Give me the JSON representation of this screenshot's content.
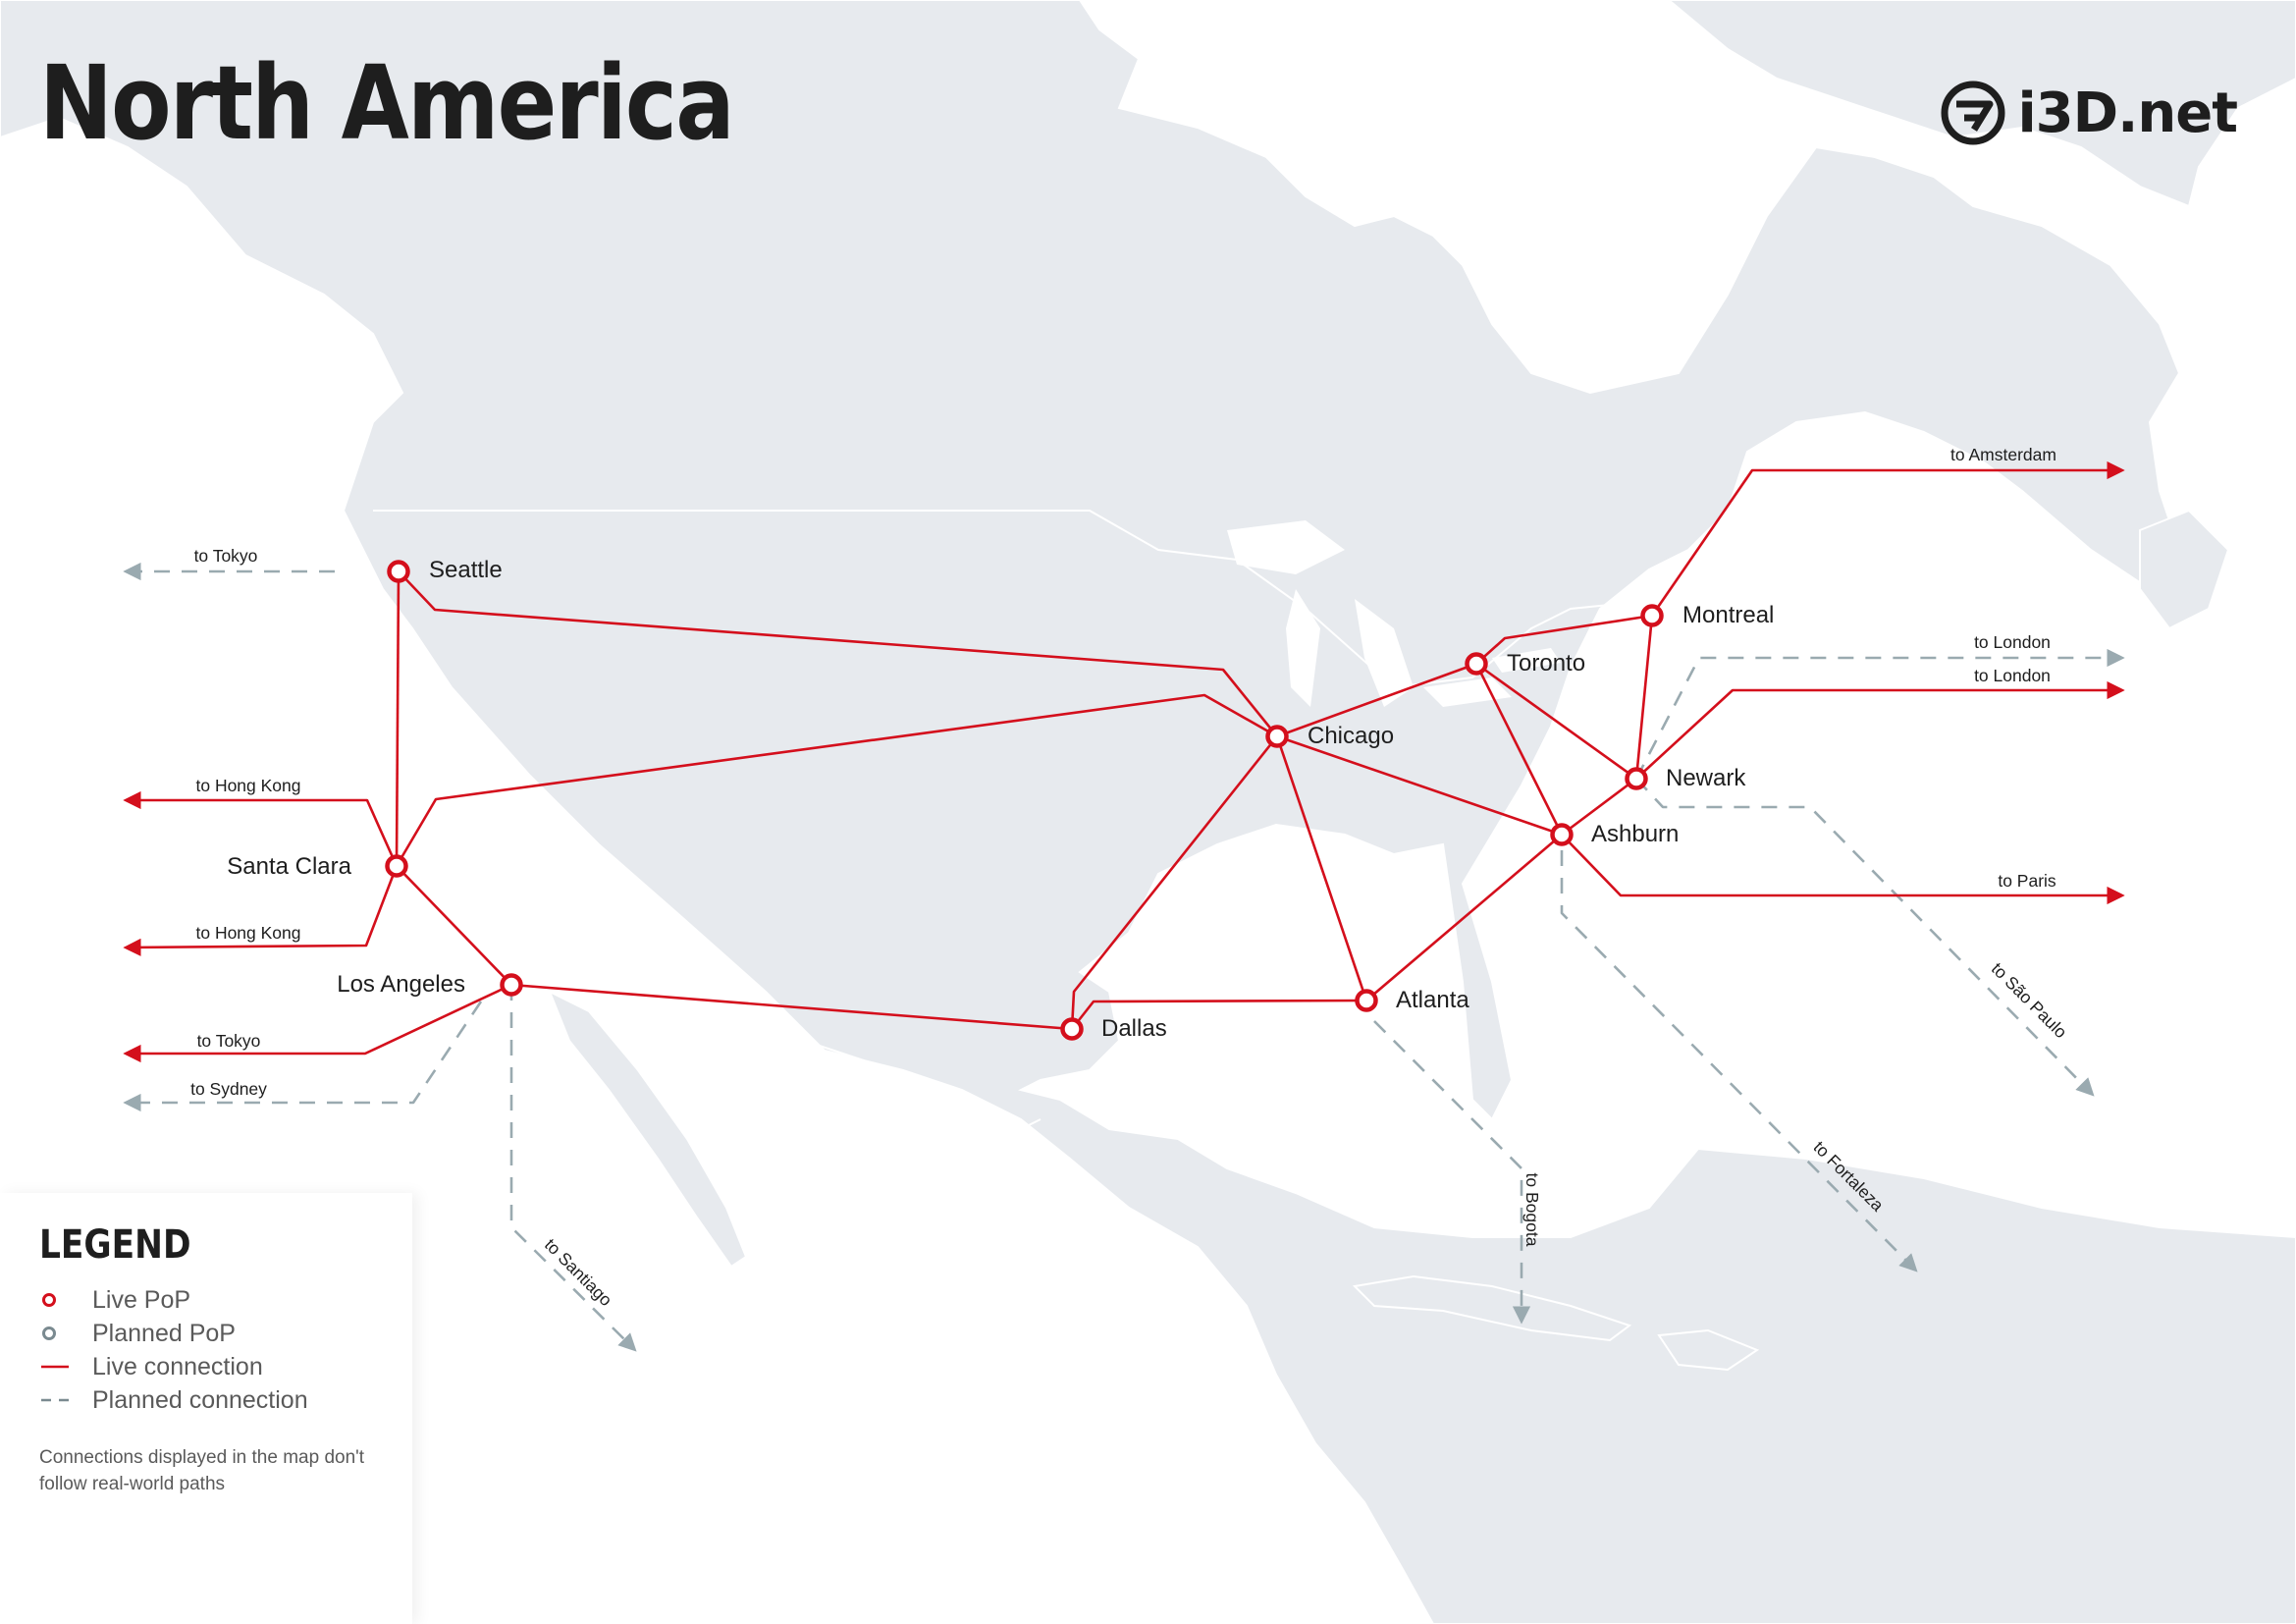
{
  "title": "North America",
  "brand": {
    "name": "i3D.net"
  },
  "colors": {
    "land": "#e7eaee",
    "sea": "#ffffff",
    "border": "#ffffff",
    "live": "#d40f1c",
    "planned": "#9aaab0",
    "text": "#1e1e1e",
    "legend_text": "#5a5a5a"
  },
  "icons": {
    "live_pop": "red-ring",
    "planned_pop": "grey-ring",
    "arrow": "arrowhead"
  },
  "pops": [
    {
      "id": "seattle",
      "name": "Seattle",
      "status": "live"
    },
    {
      "id": "santa_clara",
      "name": "Santa Clara",
      "status": "live"
    },
    {
      "id": "los_angeles",
      "name": "Los Angeles",
      "status": "live"
    },
    {
      "id": "dallas",
      "name": "Dallas",
      "status": "live"
    },
    {
      "id": "chicago",
      "name": "Chicago",
      "status": "live"
    },
    {
      "id": "atlanta",
      "name": "Atlanta",
      "status": "live"
    },
    {
      "id": "ashburn",
      "name": "Ashburn",
      "status": "live"
    },
    {
      "id": "newark",
      "name": "Newark",
      "status": "live"
    },
    {
      "id": "toronto",
      "name": "Toronto",
      "status": "live"
    },
    {
      "id": "montreal",
      "name": "Montreal",
      "status": "live"
    }
  ],
  "connections": [
    {
      "from": "seattle",
      "to": "santa_clara",
      "status": "live"
    },
    {
      "from": "seattle",
      "to": "chicago",
      "status": "live"
    },
    {
      "from": "santa_clara",
      "to": "chicago",
      "status": "live"
    },
    {
      "from": "santa_clara",
      "to": "los_angeles",
      "status": "live"
    },
    {
      "from": "los_angeles",
      "to": "dallas",
      "status": "live"
    },
    {
      "from": "dallas",
      "to": "chicago",
      "status": "live"
    },
    {
      "from": "dallas",
      "to": "atlanta",
      "status": "live"
    },
    {
      "from": "chicago",
      "to": "atlanta",
      "status": "live"
    },
    {
      "from": "chicago",
      "to": "toronto",
      "status": "live"
    },
    {
      "from": "chicago",
      "to": "ashburn",
      "status": "live"
    },
    {
      "from": "atlanta",
      "to": "ashburn",
      "status": "live"
    },
    {
      "from": "toronto",
      "to": "montreal",
      "status": "live"
    },
    {
      "from": "toronto",
      "to": "ashburn",
      "status": "live"
    },
    {
      "from": "toronto",
      "to": "newark",
      "status": "live"
    },
    {
      "from": "montreal",
      "to": "newark",
      "status": "live"
    },
    {
      "from": "newark",
      "to": "ashburn",
      "status": "live"
    }
  ],
  "external_links": [
    {
      "label": "to Tokyo",
      "from": "seattle",
      "status": "planned"
    },
    {
      "label": "to Hong Kong",
      "from": "santa_clara",
      "status": "live"
    },
    {
      "label": "to Hong Kong",
      "from": "santa_clara",
      "status": "live"
    },
    {
      "label": "to Tokyo",
      "from": "los_angeles",
      "status": "live"
    },
    {
      "label": "to Sydney",
      "from": "los_angeles",
      "status": "planned"
    },
    {
      "label": "to Santiago",
      "from": "los_angeles",
      "status": "planned"
    },
    {
      "label": "to Bogota",
      "from": "atlanta",
      "status": "planned"
    },
    {
      "label": "to Fortaleza",
      "from": "ashburn",
      "status": "planned"
    },
    {
      "label": "to São Paulo",
      "from": "newark",
      "status": "planned"
    },
    {
      "label": "to London",
      "from": "newark",
      "status": "planned"
    },
    {
      "label": "to London",
      "from": "newark",
      "status": "live"
    },
    {
      "label": "to Paris",
      "from": "ashburn",
      "status": "live"
    },
    {
      "label": "to Amsterdam",
      "from": "montreal",
      "status": "live"
    }
  ],
  "legend": {
    "title": "LEGEND",
    "items": [
      {
        "symbol": "live-pop",
        "label": "Live PoP"
      },
      {
        "symbol": "planned-pop",
        "label": "Planned PoP"
      },
      {
        "symbol": "live-connection",
        "label": "Live connection"
      },
      {
        "symbol": "planned-connection",
        "label": "Planned connection"
      }
    ],
    "note": "Connections displayed in the map don't follow real-world paths"
  }
}
